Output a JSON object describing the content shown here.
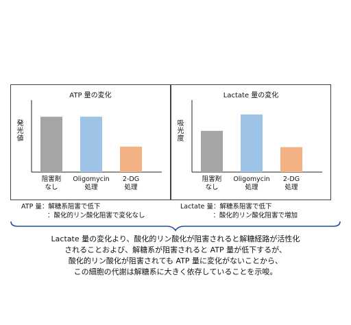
{
  "chart_data": [
    {
      "type": "bar",
      "title": "ATP 量の変化",
      "ylabel": "発光値",
      "categories": [
        [
          "阻害剤",
          "なし"
        ],
        [
          "Oligomycin",
          "処理"
        ],
        [
          "2-DG",
          "処理"
        ]
      ],
      "values": [
        1.0,
        1.0,
        0.46
      ],
      "ylim": [
        0,
        1.3
      ],
      "colors": [
        "#a5a5a5",
        "#9dc3e6",
        "#f4b183"
      ],
      "grid": false
    },
    {
      "type": "bar",
      "title": "Lactate 量の変化",
      "ylabel": "吸光度",
      "categories": [
        [
          "阻害剤",
          "なし"
        ],
        [
          "Oligomycin",
          "処理"
        ],
        [
          "2-DG",
          "処理"
        ]
      ],
      "values": [
        0.86,
        1.2,
        0.52
      ],
      "ylim": [
        0,
        1.5
      ],
      "colors": [
        "#a5a5a5",
        "#9dc3e6",
        "#f4b183"
      ],
      "grid": false
    }
  ],
  "captions": {
    "atp": "ATP 量：解糖系阻害で低下\n　　　　：酸化的リン酸化阻害で変化なし",
    "lactate": "Lactate 量：解糖系阻害で低下\n　　　　　：酸化的リン酸化阻害で増加"
  },
  "summary": "Lactate 量の変化より、酸化的リン酸化が阻害されると解糖経路が活性化\nされることおよび、解糖系が阻害されると ATP 量が低下するが、\n酸化的リン酸化が阻害されても ATP 量に変化がないことから、\nこの細胞の代謝は解糖系に大きく依存していることを示唆。",
  "colors": {
    "brace": "#1f4e9c",
    "axis": "#222222",
    "panel_border": "#444444"
  }
}
